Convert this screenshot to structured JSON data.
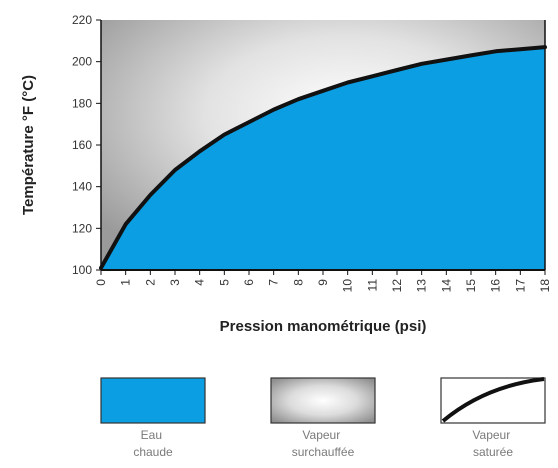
{
  "chart_data": {
    "type": "area",
    "xlabel": "Pression manométrique (psi)",
    "ylabel": "Température °F (°C)",
    "xlim": [
      0,
      18
    ],
    "ylim": [
      100,
      220
    ],
    "x_ticks": [
      "0",
      "1",
      "2",
      "3",
      "4",
      "5",
      "6",
      "7",
      "8",
      "9",
      "10",
      "11",
      "12",
      "13",
      "14",
      "15",
      "16",
      "17",
      "18"
    ],
    "y_ticks": [
      "100",
      "120",
      "140",
      "160",
      "180",
      "200",
      "220"
    ],
    "series": [
      {
        "x": [
          0,
          1,
          2,
          3,
          4,
          5,
          6,
          7,
          8,
          9,
          10,
          11,
          12,
          13,
          14,
          15,
          16,
          17,
          18
        ],
        "y": [
          101,
          122,
          136,
          148,
          157,
          165,
          171,
          177,
          182,
          186,
          190,
          193,
          196,
          199,
          201,
          203,
          205,
          206,
          207
        ]
      }
    ],
    "legend": [
      {
        "label_lines": [
          "Eau",
          "chaude"
        ],
        "kind": "fill",
        "color": "#0b9ee2"
      },
      {
        "label_lines": [
          "Vapeur",
          "surchauffée"
        ],
        "kind": "gradient"
      },
      {
        "label_lines": [
          "Vapeur",
          "saturée"
        ],
        "kind": "curve"
      }
    ],
    "legend_placement": "bottom",
    "grid": false,
    "colors": {
      "water": "#0b9ee2",
      "curve": "#111111",
      "gradient_light": "#ffffff",
      "gradient_dark": "#9a9a9a"
    }
  }
}
